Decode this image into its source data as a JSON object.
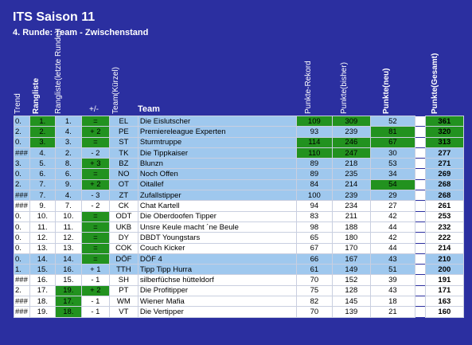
{
  "title": "ITS Saison 11",
  "subtitle": "4. Runde: Team - Zwischenstand",
  "headers": {
    "trend": "Trend",
    "rank": "Rangliste",
    "last1": "Rangliste",
    "last2": "(letzte Runde)",
    "diff": "+/-",
    "short1": "Team",
    "short2": "(Kürzel)",
    "team": "Team",
    "rek": "Punkte-Rekord",
    "bis1": "Punkte",
    "bis2": "(bisher)",
    "neu1": "Punkte",
    "neu2": "(neu)",
    "ges1": "Punkte",
    "ges2": "(Gesamt)"
  },
  "rows": [
    {
      "trend": "0.",
      "rank": "1.",
      "last": "1.",
      "diff": "=",
      "short": "EL",
      "team": "Die Eislutscher",
      "rek": "109",
      "bis": "309",
      "neu": "52",
      "ges": "361"
    },
    {
      "trend": "2.",
      "rank": "2.",
      "last": "4.",
      "diff": "+ 2",
      "short": "PE",
      "team": "Premiereleague Experten",
      "rek": "93",
      "bis": "239",
      "neu": "81",
      "ges": "320"
    },
    {
      "trend": "0.",
      "rank": "3.",
      "last": "3.",
      "diff": "=",
      "short": "ST",
      "team": "Sturmtruppe",
      "rek": "114",
      "bis": "246",
      "neu": "67",
      "ges": "313"
    },
    {
      "trend": "###",
      "rank": "4.",
      "last": "2.",
      "diff": "- 2",
      "short": "TK",
      "team": "Die Tippkaiser",
      "rek": "110",
      "bis": "247",
      "neu": "30",
      "ges": "277"
    },
    {
      "trend": "3.",
      "rank": "5.",
      "last": "8.",
      "diff": "+ 3",
      "short": "BZ",
      "team": "Blunzn",
      "rek": "89",
      "bis": "218",
      "neu": "53",
      "ges": "271"
    },
    {
      "trend": "0.",
      "rank": "6.",
      "last": "6.",
      "diff": "=",
      "short": "NO",
      "team": "Noch Offen",
      "rek": "89",
      "bis": "235",
      "neu": "34",
      "ges": "269"
    },
    {
      "trend": "2.",
      "rank": "7.",
      "last": "9.",
      "diff": "+ 2",
      "short": "OT",
      "team": "Oitallef",
      "rek": "84",
      "bis": "214",
      "neu": "54",
      "ges": "268"
    },
    {
      "trend": "###",
      "rank": "7.",
      "last": "4.",
      "diff": "- 3",
      "short": "ZT",
      "team": "Zufallstipper",
      "rek": "100",
      "bis": "239",
      "neu": "29",
      "ges": "268"
    },
    {
      "trend": "###",
      "rank": "9.",
      "last": "7.",
      "diff": "- 2",
      "short": "CK",
      "team": "Chat Kartell",
      "rek": "94",
      "bis": "234",
      "neu": "27",
      "ges": "261"
    },
    {
      "trend": "0.",
      "rank": "10.",
      "last": "10.",
      "diff": "=",
      "short": "ODT",
      "team": "Die Oberdoofen Tipper",
      "rek": "83",
      "bis": "211",
      "neu": "42",
      "ges": "253"
    },
    {
      "trend": "0.",
      "rank": "11.",
      "last": "11.",
      "diff": "=",
      "short": "UKB",
      "team": "Unsre Keule macht ´ne Beule",
      "rek": "98",
      "bis": "188",
      "neu": "44",
      "ges": "232"
    },
    {
      "trend": "0.",
      "rank": "12.",
      "last": "12.",
      "diff": "=",
      "short": "DY",
      "team": "DBDT Youngstars",
      "rek": "65",
      "bis": "180",
      "neu": "42",
      "ges": "222"
    },
    {
      "trend": "0.",
      "rank": "13.",
      "last": "13.",
      "diff": "=",
      "short": "COK",
      "team": "Couch Kicker",
      "rek": "67",
      "bis": "170",
      "neu": "44",
      "ges": "214"
    },
    {
      "trend": "0.",
      "rank": "14.",
      "last": "14.",
      "diff": "=",
      "short": "DÖF",
      "team": "DÖF 4",
      "rek": "66",
      "bis": "167",
      "neu": "43",
      "ges": "210"
    },
    {
      "trend": "1.",
      "rank": "15.",
      "last": "16.",
      "diff": "+ 1",
      "short": "TTH",
      "team": "Tipp Tipp Hurra",
      "rek": "61",
      "bis": "149",
      "neu": "51",
      "ges": "200"
    },
    {
      "trend": "###",
      "rank": "16.",
      "last": "15.",
      "diff": "- 1",
      "short": "SH",
      "team": "silberfüchse hütteldorf",
      "rek": "70",
      "bis": "152",
      "neu": "39",
      "ges": "191"
    },
    {
      "trend": "2.",
      "rank": "17.",
      "last": "19.",
      "diff": "+ 2",
      "short": "PT",
      "team": "Die Profitipper",
      "rek": "75",
      "bis": "128",
      "neu": "43",
      "ges": "171"
    },
    {
      "trend": "###",
      "rank": "18.",
      "last": "17.",
      "diff": "- 1",
      "short": "WM",
      "team": "Wiener Mafia",
      "rek": "82",
      "bis": "145",
      "neu": "18",
      "ges": "163"
    },
    {
      "trend": "###",
      "rank": "19.",
      "last": "18.",
      "diff": "- 1",
      "short": "VT",
      "team": "Die Vertipper",
      "rek": "70",
      "bis": "139",
      "neu": "21",
      "ges": "160"
    }
  ]
}
